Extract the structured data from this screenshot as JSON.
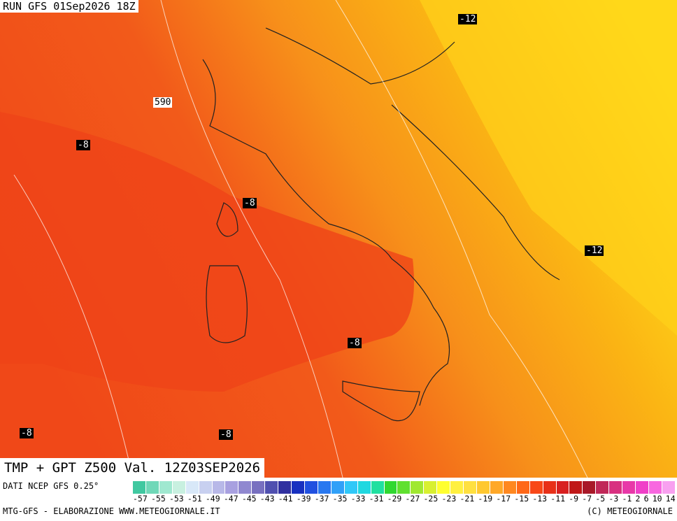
{
  "header": {
    "run": "RUN GFS 01Sep2026 18Z"
  },
  "map": {
    "labels": [
      {
        "text": "-12"
      },
      {
        "text": "-12"
      },
      {
        "text": "590"
      },
      {
        "text": "-8"
      },
      {
        "text": "-8"
      },
      {
        "text": "-8"
      },
      {
        "text": "-8"
      },
      {
        "text": "-8"
      }
    ]
  },
  "footer": {
    "title": "TMP + GPT Z500 Val. 12Z03SEP2026",
    "source": "DATI NCEP GFS 0.25°",
    "credit": "MTG-GFS - ELABORAZIONE WWW.METEOGIORNALE.IT",
    "copyright": "(C) METEOGIORNALE"
  },
  "legend": {
    "labels": [
      "-57",
      "-55",
      "-53",
      "-51",
      "-49",
      "-47",
      "-45",
      "-43",
      "-41",
      "-39",
      "-37",
      "-35",
      "-33",
      "-31",
      "-29",
      "-27",
      "-25",
      "-23",
      "-21",
      "-19",
      "-17",
      "-15",
      "-13",
      "-11",
      "-9",
      "-7",
      "-5",
      "-3",
      "-1",
      "2",
      "6",
      "10",
      "14"
    ]
  }
}
